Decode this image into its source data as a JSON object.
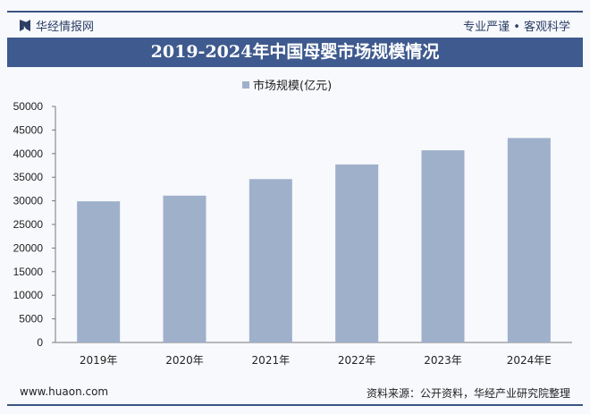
{
  "header": {
    "brand": "华经情报网",
    "slogan": "专业严谨 • 客观科学"
  },
  "footer": {
    "website": "www.huaon.com",
    "source": "资料来源：公开资料，华经产业研究院整理"
  },
  "chart_data": {
    "type": "bar",
    "title": "2019-2024年中国母婴市场规模情况",
    "categories": [
      "2019年",
      "2020年",
      "2021年",
      "2022年",
      "2023年",
      "2024年E"
    ],
    "series": [
      {
        "name": "市场规模(亿元)",
        "values": [
          29900,
          31100,
          34600,
          37700,
          40700,
          43300
        ],
        "color": "#9fb0cb"
      }
    ],
    "ylim": [
      0,
      50000
    ],
    "yticks": [
      0,
      5000,
      10000,
      15000,
      20000,
      25000,
      30000,
      35000,
      40000,
      45000,
      50000
    ],
    "grid": false,
    "legend": "top-center"
  }
}
